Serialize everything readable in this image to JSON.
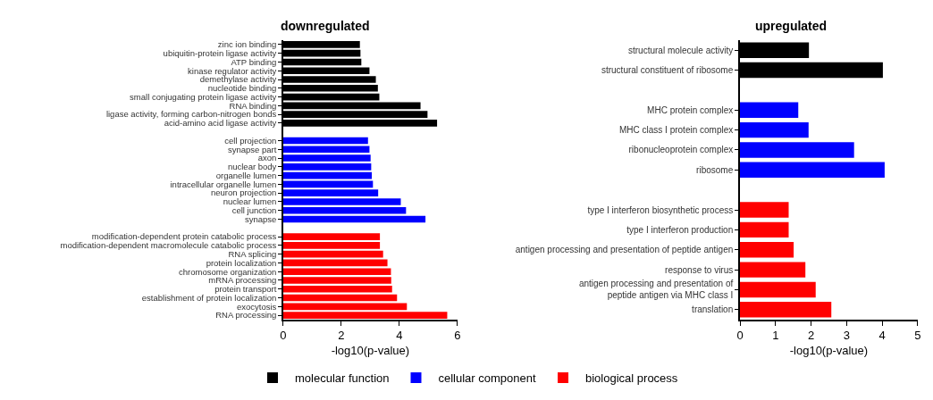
{
  "chart_data": [
    {
      "type": "bar",
      "orientation": "horizontal",
      "title": "downregulated",
      "xlabel": "-log10(p-value)",
      "xlim": [
        0,
        6
      ],
      "xticks": [
        0,
        2,
        4,
        6
      ],
      "legend": "bottom",
      "categories": [
        "zinc ion binding",
        "ubiquitin-protein ligase activity",
        "ATP binding",
        "kinase regulator activity",
        "demethylase activity",
        "nucleotide binding",
        "small conjugating protein ligase activity",
        "RNA binding",
        "ligase activity, forming carbon-nitrogen bonds",
        "acid-amino acid ligase activity",
        null,
        "cell projection",
        "synapse part",
        "axon",
        "nuclear body",
        "organelle lumen",
        "intracellular organelle lumen",
        "neuron projection",
        "nuclear lumen",
        "cell junction",
        "synapse",
        null,
        "modification-dependent protein catabolic process",
        "modification-dependent macromolecule catabolic process",
        "RNA splicing",
        "protein localization",
        "chromosome organization",
        "mRNA processing",
        "protein transport",
        "establishment of protein localization",
        "exocytosis",
        "RNA processing"
      ],
      "series": [
        {
          "name": "molecular function",
          "color": "#000000",
          "values": [
            2.64,
            2.66,
            2.69,
            2.97,
            3.19,
            3.26,
            3.31,
            4.73,
            4.97,
            5.3,
            null,
            null,
            null,
            null,
            null,
            null,
            null,
            null,
            null,
            null,
            null,
            null,
            null,
            null,
            null,
            null,
            null,
            null,
            null,
            null,
            null,
            null
          ]
        },
        {
          "name": "cellular component",
          "color": "#0000ff",
          "values": [
            null,
            null,
            null,
            null,
            null,
            null,
            null,
            null,
            null,
            null,
            null,
            2.92,
            2.97,
            3.01,
            3.03,
            3.05,
            3.09,
            3.27,
            4.05,
            4.23,
            4.9,
            null,
            null,
            null,
            null,
            null,
            null,
            null,
            null,
            null,
            null,
            null
          ]
        },
        {
          "name": "biological process",
          "color": "#ff0000",
          "values": [
            null,
            null,
            null,
            null,
            null,
            null,
            null,
            null,
            null,
            null,
            null,
            null,
            null,
            null,
            null,
            null,
            null,
            null,
            null,
            null,
            null,
            null,
            3.33,
            3.33,
            3.44,
            3.59,
            3.71,
            3.72,
            3.75,
            3.92,
            4.26,
            5.65
          ]
        }
      ]
    },
    {
      "type": "bar",
      "orientation": "horizontal",
      "title": "upregulated",
      "xlabel": "-log10(p-value)",
      "xlim": [
        0,
        5
      ],
      "xticks": [
        0,
        1,
        2,
        3,
        4,
        5
      ],
      "categories": [
        "structural molecule activity",
        "structural constituent of ribosome",
        null,
        "MHC protein complex",
        "MHC class I protein complex",
        "ribonucleoprotein complex",
        "ribosome",
        null,
        "type I interferon biosynthetic process",
        "type I interferon production",
        "antigen processing and presentation of peptide antigen",
        "response to virus",
        "antigen processing and presentation of\npeptide antigen via MHC class I",
        "translation"
      ],
      "series": [
        {
          "color": "#000000",
          "values": [
            1.94,
            4.02,
            null,
            null,
            null,
            null,
            null,
            null,
            null,
            null,
            null,
            null,
            null,
            null
          ]
        },
        {
          "color": "#0000ff",
          "values": [
            null,
            null,
            null,
            1.64,
            1.93,
            3.21,
            4.07,
            null,
            null,
            null,
            null,
            null,
            null,
            null
          ]
        },
        {
          "color": "#ff0000",
          "values": [
            null,
            null,
            null,
            null,
            null,
            null,
            null,
            null,
            1.37,
            1.37,
            1.51,
            1.84,
            2.13,
            2.57
          ]
        }
      ]
    }
  ]
}
